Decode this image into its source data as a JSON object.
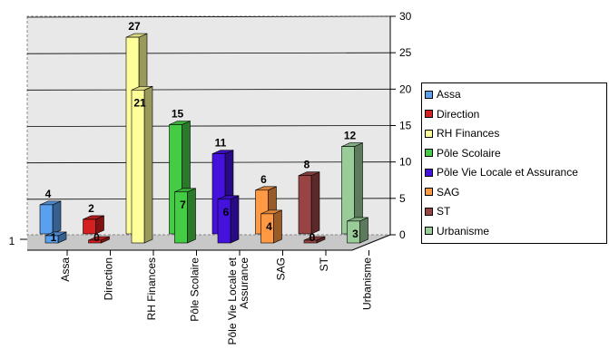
{
  "chart_data": {
    "type": "bar",
    "categories": [
      "Assa",
      "Direction",
      "RH Finances",
      "Pôle Scolaire",
      "Pôle Vie Locale et Assurance",
      "SAG",
      "ST",
      "Urbanisme"
    ],
    "category_label_lines": [
      [
        "Assa"
      ],
      [
        "Direction"
      ],
      [
        "RH Finances"
      ],
      [
        "Pôle Scolaire"
      ],
      [
        "Pôle Vie Locale et",
        "Assurance"
      ],
      [
        "SAG"
      ],
      [
        "ST"
      ],
      [
        "Urbanisme"
      ]
    ],
    "series": [
      {
        "values": [
          4,
          2,
          27,
          15,
          11,
          6,
          8,
          12
        ]
      },
      {
        "values": [
          1,
          0,
          21,
          7,
          6,
          4,
          0,
          3
        ]
      }
    ],
    "colors": [
      "#5aa0ee",
      "#d42020",
      "#ffff99",
      "#44cc44",
      "#4411dd",
      "#ff9944",
      "#994444",
      "#99cc99"
    ],
    "ylim": [
      0,
      30
    ],
    "yticks": [
      0,
      5,
      10,
      15,
      20,
      25,
      30
    ],
    "depth_axis_label": "1",
    "legend_position": "right",
    "grid": true,
    "xlabel": "",
    "ylabel": ""
  }
}
